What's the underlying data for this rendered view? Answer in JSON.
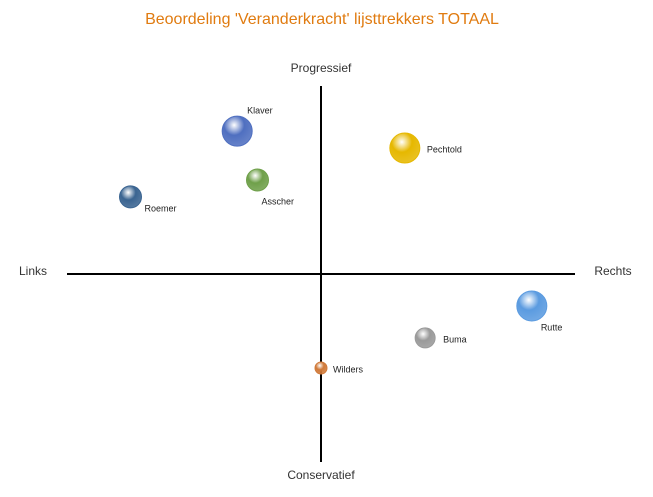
{
  "chart_data": {
    "type": "bubble",
    "title": "Beoordeling 'Veranderkracht' lijsttrekkers  TOTAAL",
    "axis_labels": {
      "top": "Progressief",
      "bottom": "Conservatief",
      "left": "Links",
      "right": "Rechts"
    },
    "xlim": [
      -1,
      1
    ],
    "ylim": [
      -1,
      1
    ],
    "points": [
      {
        "name": "Klaver",
        "x": -0.33,
        "y": 0.76,
        "size": 15,
        "color": "#4f6fc0"
      },
      {
        "name": "Pechtold",
        "x": 0.33,
        "y": 0.67,
        "size": 15,
        "color": "#e6b800"
      },
      {
        "name": "Asscher",
        "x": -0.25,
        "y": 0.5,
        "size": 11,
        "color": "#6fa04a"
      },
      {
        "name": "Roemer",
        "x": -0.75,
        "y": 0.41,
        "size": 11,
        "color": "#3a6491"
      },
      {
        "name": "Rutte",
        "x": 0.83,
        "y": -0.17,
        "size": 15,
        "color": "#5b9be0"
      },
      {
        "name": "Buma",
        "x": 0.41,
        "y": -0.34,
        "size": 10,
        "color": "#9a9a9a"
      },
      {
        "name": "Wilders",
        "x": 0,
        "y": -0.5,
        "size": 6,
        "color": "#d07a3a"
      }
    ]
  }
}
